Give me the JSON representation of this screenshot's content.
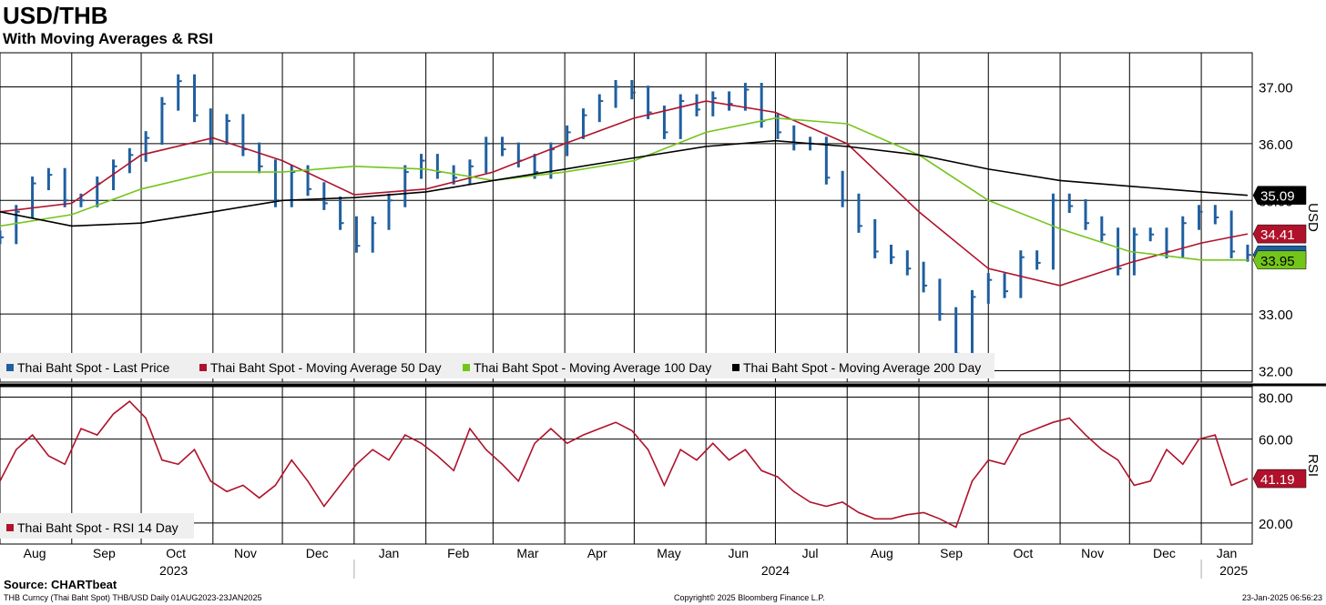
{
  "header": {
    "title": "USD/THB",
    "subtitle": "With Moving Averages & RSI"
  },
  "footer": {
    "source": "Source: CHARTbeat",
    "security": "THB Curncy (Thai Baht Spot) THB/USD  Daily 01AUG2023-23JAN2025",
    "copyright": "Copyright© 2025 Bloomberg Finance L.P.",
    "timestamp": "23-Jan-2025 06:56:23"
  },
  "colors": {
    "price": "#1f5fa0",
    "ma50": "#b0122b",
    "ma100": "#74c51b",
    "ma200": "#000000",
    "rsi": "#b0122b"
  },
  "chart_data": [
    {
      "type": "line",
      "panel": "price",
      "axis_label": "USD",
      "ylim": [
        31.8,
        37.6
      ],
      "yticks": [
        "37.00",
        "36.00",
        "35.00",
        "33.00",
        "32.00"
      ],
      "grid": true,
      "legend_placement": "bottom-left",
      "series": [
        {
          "name": "Thai Baht Spot - Last Price",
          "color_key": "price",
          "last_label": "34.04",
          "x": [
            "2023-08-01",
            "2023-08-08",
            "2023-08-15",
            "2023-08-22",
            "2023-08-29",
            "2023-09-05",
            "2023-09-12",
            "2023-09-19",
            "2023-09-26",
            "2023-10-03",
            "2023-10-10",
            "2023-10-17",
            "2023-10-24",
            "2023-10-31",
            "2023-11-07",
            "2023-11-14",
            "2023-11-21",
            "2023-11-28",
            "2023-12-05",
            "2023-12-12",
            "2023-12-19",
            "2023-12-26",
            "2024-01-02",
            "2024-01-09",
            "2024-01-16",
            "2024-01-23",
            "2024-01-30",
            "2024-02-06",
            "2024-02-13",
            "2024-02-20",
            "2024-02-27",
            "2024-03-05",
            "2024-03-12",
            "2024-03-19",
            "2024-03-26",
            "2024-04-02",
            "2024-04-09",
            "2024-04-16",
            "2024-04-23",
            "2024-04-30",
            "2024-05-07",
            "2024-05-14",
            "2024-05-21",
            "2024-05-28",
            "2024-06-04",
            "2024-06-11",
            "2024-06-18",
            "2024-06-25",
            "2024-07-02",
            "2024-07-09",
            "2024-07-16",
            "2024-07-23",
            "2024-07-30",
            "2024-08-06",
            "2024-08-13",
            "2024-08-20",
            "2024-08-27",
            "2024-09-03",
            "2024-09-10",
            "2024-09-17",
            "2024-09-24",
            "2024-10-01",
            "2024-10-08",
            "2024-10-15",
            "2024-10-22",
            "2024-10-29",
            "2024-11-05",
            "2024-11-12",
            "2024-11-19",
            "2024-11-26",
            "2024-12-03",
            "2024-12-10",
            "2024-12-17",
            "2024-12-24",
            "2024-12-31",
            "2025-01-07",
            "2025-01-14",
            "2025-01-21"
          ],
          "values": [
            34.35,
            34.8,
            35.3,
            35.45,
            35.0,
            35.0,
            35.3,
            35.6,
            35.8,
            36.1,
            36.7,
            37.1,
            36.5,
            36.1,
            36.4,
            35.9,
            35.6,
            35.0,
            35.5,
            35.2,
            34.95,
            34.6,
            34.2,
            34.6,
            35.0,
            35.5,
            35.7,
            35.5,
            35.4,
            35.6,
            36.0,
            35.9,
            35.7,
            35.5,
            35.9,
            36.2,
            36.5,
            36.75,
            37.0,
            36.9,
            36.55,
            36.2,
            36.75,
            36.6,
            36.8,
            36.7,
            36.95,
            36.4,
            36.2,
            36.0,
            36.0,
            35.4,
            35.0,
            34.55,
            34.1,
            34.0,
            33.8,
            33.5,
            33.0,
            32.3,
            33.3,
            33.6,
            33.4,
            34.0,
            33.9,
            35.0,
            34.9,
            34.6,
            34.4,
            33.8,
            34.4,
            34.4,
            34.1,
            34.6,
            34.8,
            34.7,
            34.1,
            34.04
          ]
        },
        {
          "name": "Thai Baht Spot - Moving Average 50 Day",
          "color_key": "ma50",
          "last_label": "34.41",
          "x": [
            "2023-08-01",
            "2023-09-01",
            "2023-10-01",
            "2023-11-01",
            "2023-12-01",
            "2024-01-01",
            "2024-02-01",
            "2024-03-01",
            "2024-04-01",
            "2024-05-01",
            "2024-06-01",
            "2024-07-01",
            "2024-08-01",
            "2024-09-01",
            "2024-10-01",
            "2024-11-01",
            "2024-12-01",
            "2025-01-01",
            "2025-01-21"
          ],
          "values": [
            34.8,
            34.95,
            35.8,
            36.1,
            35.7,
            35.1,
            35.2,
            35.5,
            36.0,
            36.45,
            36.75,
            36.55,
            36.0,
            34.8,
            33.8,
            33.5,
            33.9,
            34.25,
            34.41
          ]
        },
        {
          "name": "Thai Baht Spot - Moving Average 100 Day",
          "color_key": "ma100",
          "last_label": "33.95",
          "x": [
            "2023-08-01",
            "2023-09-01",
            "2023-10-01",
            "2023-11-01",
            "2023-12-01",
            "2024-01-01",
            "2024-02-01",
            "2024-03-01",
            "2024-04-01",
            "2024-05-01",
            "2024-06-01",
            "2024-07-01",
            "2024-08-01",
            "2024-09-01",
            "2024-10-01",
            "2024-11-01",
            "2024-12-01",
            "2025-01-01",
            "2025-01-21"
          ],
          "values": [
            34.55,
            34.75,
            35.2,
            35.5,
            35.5,
            35.6,
            35.55,
            35.35,
            35.5,
            35.7,
            36.2,
            36.45,
            36.35,
            35.8,
            35.0,
            34.5,
            34.1,
            33.95,
            33.95
          ]
        },
        {
          "name": "Thai Baht Spot - Moving Average 200 Day",
          "color_key": "ma200",
          "last_label": "35.09",
          "x": [
            "2023-08-01",
            "2023-09-01",
            "2023-10-01",
            "2023-11-01",
            "2023-12-01",
            "2024-01-01",
            "2024-02-01",
            "2024-03-01",
            "2024-04-01",
            "2024-05-01",
            "2024-06-01",
            "2024-07-01",
            "2024-08-01",
            "2024-09-01",
            "2024-10-01",
            "2024-11-01",
            "2024-12-01",
            "2025-01-01",
            "2025-01-21"
          ],
          "values": [
            34.8,
            34.55,
            34.6,
            34.8,
            35.0,
            35.05,
            35.15,
            35.35,
            35.55,
            35.75,
            35.95,
            36.05,
            35.95,
            35.8,
            35.55,
            35.35,
            35.25,
            35.15,
            35.09
          ]
        }
      ]
    },
    {
      "type": "line",
      "panel": "rsi",
      "axis_label": "RSI",
      "ylim": [
        10,
        85
      ],
      "yticks": [
        "80.00",
        "60.00",
        "20.00"
      ],
      "grid": true,
      "legend_placement": "bottom-left",
      "series": [
        {
          "name": "Thai Baht Spot - RSI 14 Day",
          "color_key": "rsi",
          "last_label": "41.19",
          "x": [
            "2023-08-01",
            "2023-08-08",
            "2023-08-15",
            "2023-08-22",
            "2023-08-29",
            "2023-09-05",
            "2023-09-12",
            "2023-09-19",
            "2023-09-26",
            "2023-10-03",
            "2023-10-10",
            "2023-10-17",
            "2023-10-24",
            "2023-10-31",
            "2023-11-07",
            "2023-11-14",
            "2023-11-21",
            "2023-11-28",
            "2023-12-05",
            "2023-12-12",
            "2023-12-19",
            "2023-12-26",
            "2024-01-02",
            "2024-01-09",
            "2024-01-16",
            "2024-01-23",
            "2024-01-30",
            "2024-02-06",
            "2024-02-13",
            "2024-02-20",
            "2024-02-27",
            "2024-03-05",
            "2024-03-12",
            "2024-03-19",
            "2024-03-26",
            "2024-04-02",
            "2024-04-09",
            "2024-04-16",
            "2024-04-23",
            "2024-04-30",
            "2024-05-07",
            "2024-05-14",
            "2024-05-21",
            "2024-05-28",
            "2024-06-04",
            "2024-06-11",
            "2024-06-18",
            "2024-06-25",
            "2024-07-02",
            "2024-07-09",
            "2024-07-16",
            "2024-07-23",
            "2024-07-30",
            "2024-08-06",
            "2024-08-13",
            "2024-08-20",
            "2024-08-27",
            "2024-09-03",
            "2024-09-10",
            "2024-09-17",
            "2024-09-24",
            "2024-10-01",
            "2024-10-08",
            "2024-10-15",
            "2024-10-22",
            "2024-10-29",
            "2024-11-05",
            "2024-11-12",
            "2024-11-19",
            "2024-11-26",
            "2024-12-03",
            "2024-12-10",
            "2024-12-17",
            "2024-12-24",
            "2024-12-31",
            "2025-01-07",
            "2025-01-14",
            "2025-01-21"
          ],
          "values": [
            40,
            55,
            62,
            52,
            48,
            65,
            62,
            72,
            78,
            70,
            50,
            48,
            55,
            40,
            35,
            38,
            32,
            38,
            50,
            40,
            28,
            38,
            48,
            55,
            50,
            62,
            58,
            52,
            45,
            65,
            55,
            48,
            40,
            58,
            65,
            58,
            62,
            65,
            68,
            64,
            55,
            38,
            55,
            50,
            58,
            50,
            55,
            45,
            42,
            35,
            30,
            28,
            30,
            25,
            22,
            22,
            24,
            25,
            22,
            18,
            40,
            50,
            48,
            62,
            65,
            68,
            70,
            62,
            55,
            50,
            38,
            40,
            55,
            48,
            60,
            62,
            38,
            41.19
          ]
        }
      ]
    }
  ],
  "xaxis": {
    "months": [
      {
        "label": "Aug",
        "date": "2023-08-16"
      },
      {
        "label": "Sep",
        "date": "2023-09-15"
      },
      {
        "label": "Oct",
        "date": "2023-10-16"
      },
      {
        "label": "Nov",
        "date": "2023-11-15"
      },
      {
        "label": "Dec",
        "date": "2023-12-16"
      },
      {
        "label": "Jan",
        "date": "2024-01-16"
      },
      {
        "label": "Feb",
        "date": "2024-02-15"
      },
      {
        "label": "Mar",
        "date": "2024-03-16"
      },
      {
        "label": "Apr",
        "date": "2024-04-15"
      },
      {
        "label": "May",
        "date": "2024-05-16"
      },
      {
        "label": "Jun",
        "date": "2024-06-15"
      },
      {
        "label": "Jul",
        "date": "2024-07-16"
      },
      {
        "label": "Aug",
        "date": "2024-08-16"
      },
      {
        "label": "Sep",
        "date": "2024-09-15"
      },
      {
        "label": "Oct",
        "date": "2024-10-16"
      },
      {
        "label": "Nov",
        "date": "2024-11-15"
      },
      {
        "label": "Dec",
        "date": "2024-12-16"
      },
      {
        "label": "Jan",
        "date": "2025-01-12"
      }
    ],
    "years": [
      {
        "label": "2023",
        "date": "2023-10-15"
      },
      {
        "label": "2024",
        "date": "2024-07-01"
      },
      {
        "label": "2025",
        "date": "2025-01-15"
      }
    ],
    "start": "2023-08-01",
    "end": "2025-01-23"
  }
}
